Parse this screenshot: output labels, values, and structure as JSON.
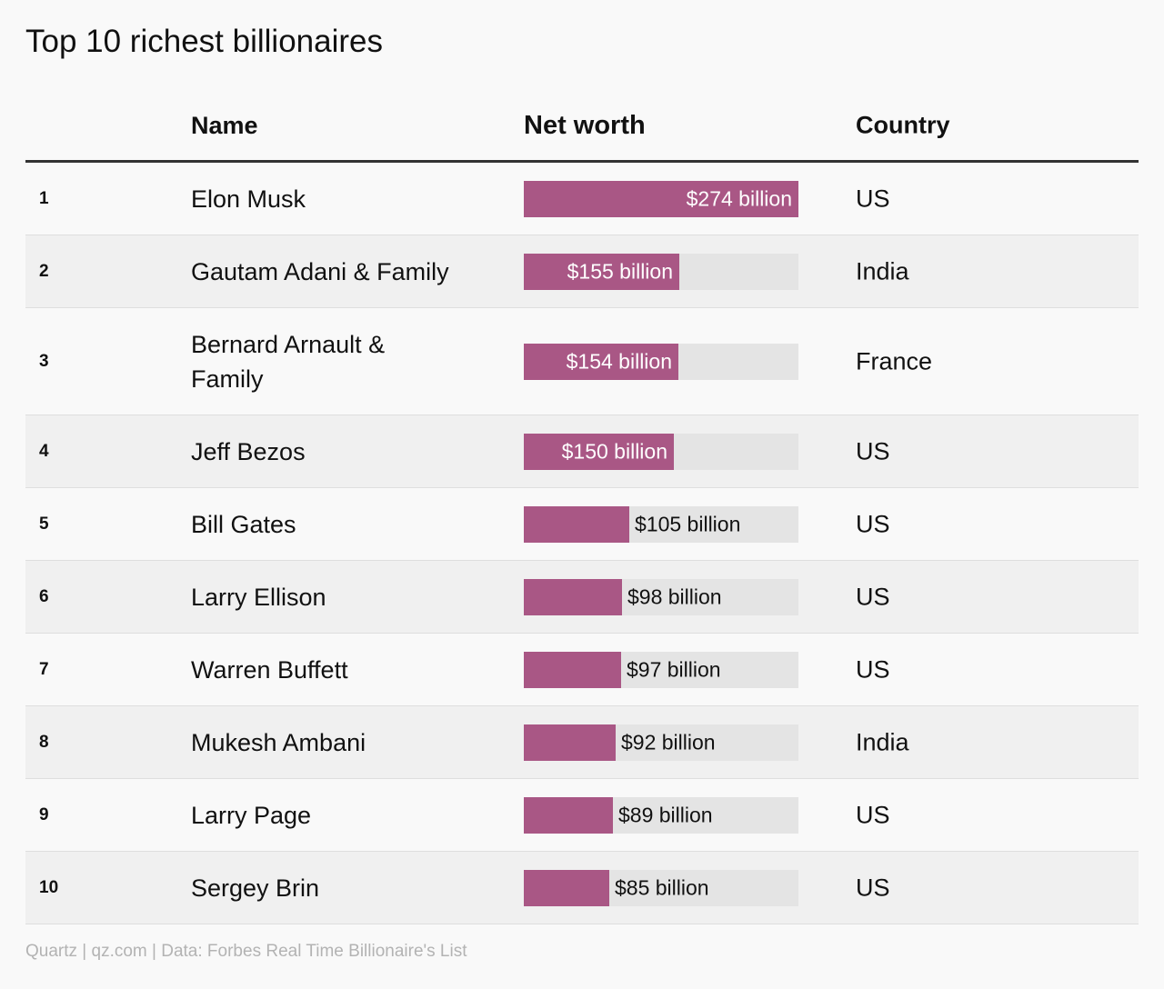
{
  "title": "Top 10 richest billionaires",
  "headers": {
    "rank": "",
    "name": "Name",
    "net_worth": "Net worth",
    "country": "Country"
  },
  "footer": "Quartz | qz.com | Data: Forbes Real Time Billionaire's List",
  "colors": {
    "bar": "#a95785",
    "track": "#e4e4e4",
    "header_rule": "#333333"
  },
  "chart_data": {
    "type": "bar",
    "title": "Top 10 richest billionaires",
    "unit": "billion USD",
    "xlim": [
      0,
      274
    ],
    "rows": [
      {
        "rank": "1",
        "name": "Elon Musk",
        "value": 274,
        "label": "$274 billion",
        "country": "US"
      },
      {
        "rank": "2",
        "name": "Gautam Adani & Family",
        "value": 155,
        "label": "$155 billion",
        "country": "India"
      },
      {
        "rank": "3",
        "name": "Bernard Arnault & Family",
        "value": 154,
        "label": "$154 billion",
        "country": "France"
      },
      {
        "rank": "4",
        "name": "Jeff Bezos",
        "value": 150,
        "label": "$150 billion",
        "country": "US"
      },
      {
        "rank": "5",
        "name": "Bill Gates",
        "value": 105,
        "label": "$105 billion",
        "country": "US"
      },
      {
        "rank": "6",
        "name": "Larry Ellison",
        "value": 98,
        "label": "$98 billion",
        "country": "US"
      },
      {
        "rank": "7",
        "name": "Warren Buffett",
        "value": 97,
        "label": "$97 billion",
        "country": "US"
      },
      {
        "rank": "8",
        "name": "Mukesh Ambani",
        "value": 92,
        "label": "$92 billion",
        "country": "India"
      },
      {
        "rank": "9",
        "name": "Larry Page",
        "value": 89,
        "label": "$89 billion",
        "country": "US"
      },
      {
        "rank": "10",
        "name": "Sergey Brin",
        "value": 85,
        "label": "$85 billion",
        "country": "US"
      }
    ]
  }
}
